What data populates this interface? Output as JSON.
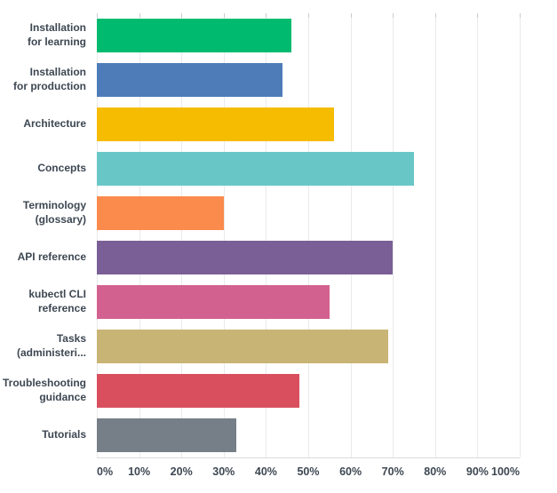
{
  "chart_data": {
    "type": "bar",
    "orientation": "horizontal",
    "title": "",
    "xlabel": "",
    "ylabel": "",
    "xlim": [
      0,
      100
    ],
    "grid": "vertical gridlines every 10%",
    "legend": "none",
    "x_tick_labels": [
      "0%",
      "10%",
      "20%",
      "30%",
      "40%",
      "50%",
      "60%",
      "70%",
      "80%",
      "90%",
      "100%"
    ],
    "categories": [
      "Installation for learning",
      "Installation for production",
      "Architecture",
      "Concepts",
      "Terminology (glossary)",
      "API reference",
      "kubectl CLI reference",
      "Tasks (administeri...",
      "Troubleshooting guidance",
      "Tutorials"
    ],
    "category_display_lines": [
      [
        "Installation",
        "for learning"
      ],
      [
        "Installation",
        "for production"
      ],
      [
        "Architecture"
      ],
      [
        "Concepts"
      ],
      [
        "Terminology",
        "(glossary)"
      ],
      [
        "API reference"
      ],
      [
        "kubectl CLI",
        "reference"
      ],
      [
        "Tasks",
        "(administeri..."
      ],
      [
        "Troubleshooting",
        "guidance"
      ],
      [
        "Tutorials"
      ]
    ],
    "values": [
      46,
      44,
      56,
      75,
      30,
      70,
      55,
      69,
      48,
      33
    ],
    "value_unit": "%",
    "bar_colors": [
      "#00bb6f",
      "#4e7cb8",
      "#f6bc02",
      "#69c6c7",
      "#fb8a4d",
      "#7a5f96",
      "#d2618f",
      "#c8b474",
      "#d94f5e",
      "#767f88"
    ]
  },
  "style": {
    "background": "#ffffff",
    "text_color": "#3d4752",
    "gridline_color": "#e9eaeb",
    "axis_line_color": "#d8dbde",
    "tick_color": "#c7ccd1"
  }
}
